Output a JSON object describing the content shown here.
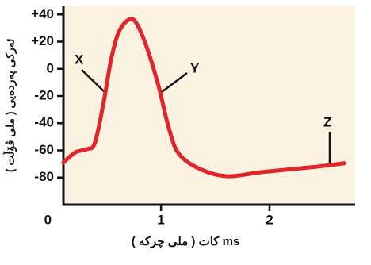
{
  "chart_data": {
    "type": "line",
    "x_label": "کات ( ملی چرکە ) ms",
    "y_label": "ئەرکی پەردەیی ( ملی ڤۆڵت )",
    "x": [
      0.1,
      0.21,
      0.32,
      0.39,
      0.47,
      0.54,
      0.61,
      0.7,
      0.77,
      0.87,
      0.98,
      1.07,
      1.16,
      1.34,
      1.6,
      1.93,
      2.44,
      2.69
    ],
    "series": [
      {
        "color": "#e0262b",
        "values": [
          -69,
          -61.5,
          -59,
          -54.5,
          -25,
          7,
          27,
          36,
          34,
          15.5,
          -13.5,
          -43,
          -62,
          -73,
          -79,
          -76,
          -72,
          -69.5
        ]
      }
    ],
    "xlim": [
      0.1,
      2.79
    ],
    "xticks": [
      0,
      1,
      2
    ],
    "ylim": [
      -100,
      46
    ],
    "yticks": [
      {
        "value": 40,
        "label": "+40"
      },
      {
        "value": 20,
        "label": "+20"
      },
      0,
      -20,
      -40,
      -60,
      -80
    ],
    "annotations": [
      "X",
      "Y",
      "Z"
    ]
  }
}
